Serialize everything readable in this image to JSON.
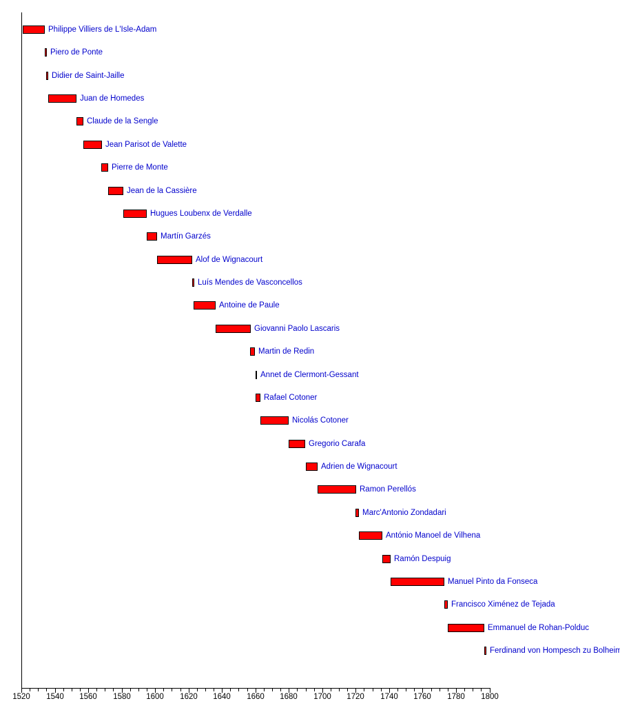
{
  "chart_data": {
    "type": "bar",
    "subtype": "horizontal-timeline",
    "title": "",
    "xlabel": "",
    "ylabel": "",
    "xlim": [
      1520,
      1800
    ],
    "x_major_tick_step": 20,
    "x_minor_tick_step": 5,
    "x_tick_labels": [
      "1520",
      "1540",
      "1560",
      "1580",
      "1600",
      "1620",
      "1640",
      "1660",
      "1680",
      "1700",
      "1720",
      "1740",
      "1760",
      "1780",
      "1800"
    ],
    "grid": false,
    "legend": false,
    "colors": {
      "bar_fill": "#ff0000",
      "bar_border": "#000000",
      "label_text": "#0000cc",
      "axis": "#000000",
      "tick_text": "#000000",
      "background": "#ffffff"
    },
    "series": [
      {
        "name": "Philippe Villiers de L'Isle-Adam",
        "start": 1521,
        "end": 1534
      },
      {
        "name": "Piero de Ponte",
        "start": 1534,
        "end": 1535
      },
      {
        "name": "Didier de Saint-Jaille",
        "start": 1535,
        "end": 1536
      },
      {
        "name": "Juan de Homedes",
        "start": 1536,
        "end": 1553
      },
      {
        "name": "Claude de la Sengle",
        "start": 1553,
        "end": 1557
      },
      {
        "name": "Jean Parisot de Valette",
        "start": 1557,
        "end": 1568
      },
      {
        "name": "Pierre de Monte",
        "start": 1568,
        "end": 1572
      },
      {
        "name": "Jean de la Cassière",
        "start": 1572,
        "end": 1581
      },
      {
        "name": "Hugues Loubenx de Verdalle",
        "start": 1581,
        "end": 1595
      },
      {
        "name": "Martín Garzés",
        "start": 1595,
        "end": 1601
      },
      {
        "name": "Alof de Wignacourt",
        "start": 1601,
        "end": 1622
      },
      {
        "name": "Luís Mendes de Vasconcellos",
        "start": 1622,
        "end": 1623
      },
      {
        "name": "Antoine de Paule",
        "start": 1623,
        "end": 1636
      },
      {
        "name": "Giovanni Paolo Lascaris",
        "start": 1636,
        "end": 1657
      },
      {
        "name": "Martin de Redin",
        "start": 1657,
        "end": 1660
      },
      {
        "name": "Annet de Clermont-Gessant",
        "start": 1660,
        "end": 1660
      },
      {
        "name": "Rafael Cotoner",
        "start": 1660,
        "end": 1663
      },
      {
        "name": "Nicolás Cotoner",
        "start": 1663,
        "end": 1680
      },
      {
        "name": "Gregorio Carafa",
        "start": 1680,
        "end": 1690
      },
      {
        "name": "Adrien de Wignacourt",
        "start": 1690,
        "end": 1697
      },
      {
        "name": "Ramon Perellós",
        "start": 1697,
        "end": 1720
      },
      {
        "name": "Marc'Antonio Zondadari",
        "start": 1720,
        "end": 1722
      },
      {
        "name": "António Manoel de Vilhena",
        "start": 1722,
        "end": 1736
      },
      {
        "name": "Ramón Despuig",
        "start": 1736,
        "end": 1741
      },
      {
        "name": "Manuel Pinto da Fonseca",
        "start": 1741,
        "end": 1773
      },
      {
        "name": "Francisco Ximénez de Tejada",
        "start": 1773,
        "end": 1775
      },
      {
        "name": "Emmanuel de Rohan-Polduc",
        "start": 1775,
        "end": 1797
      },
      {
        "name": "Ferdinand von Hompesch zu Bolheim",
        "start": 1797,
        "end": 1798
      }
    ]
  }
}
